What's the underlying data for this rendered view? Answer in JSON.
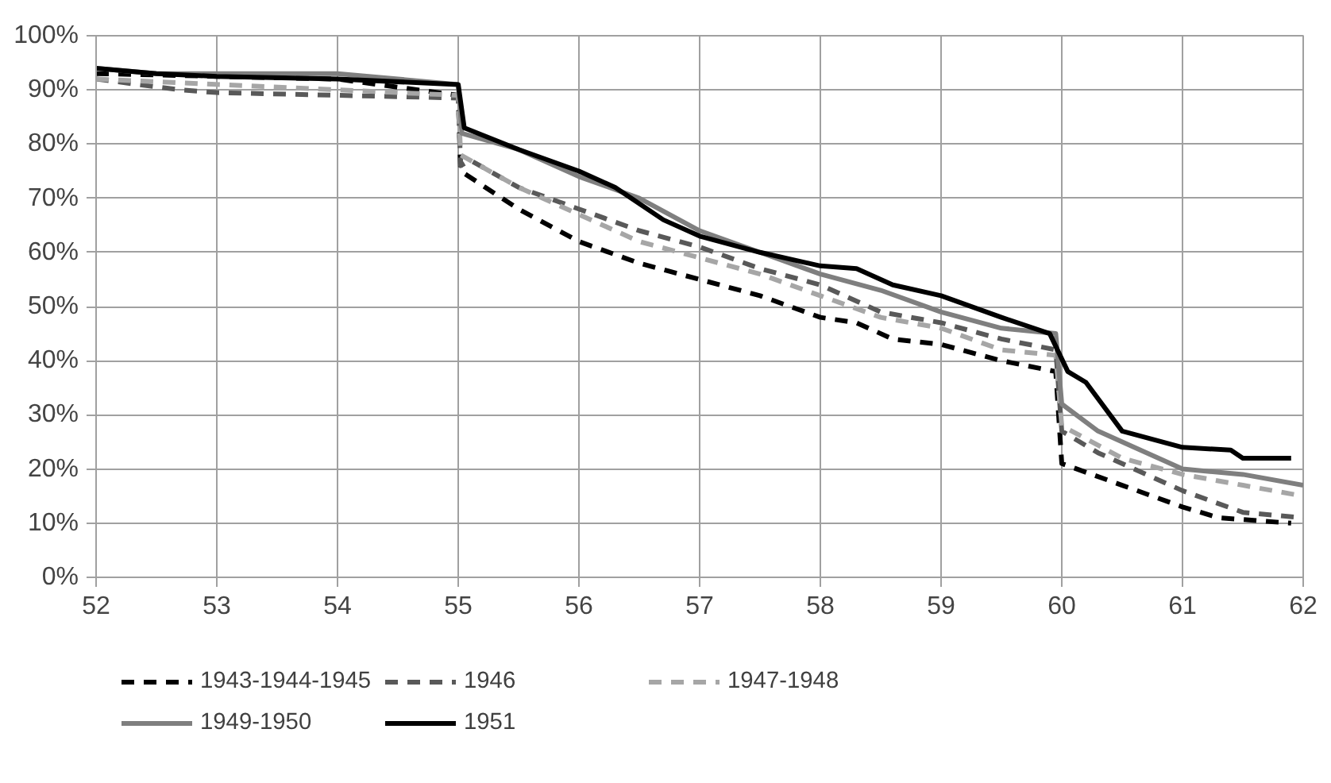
{
  "chart_data": {
    "type": "line",
    "xlim": [
      52,
      62
    ],
    "xticks": [
      52,
      53,
      54,
      55,
      56,
      57,
      58,
      59,
      60,
      61,
      62
    ],
    "ylim": [
      0,
      100
    ],
    "yticks": [
      {
        "value": 0,
        "label": "0%"
      },
      {
        "value": 10,
        "label": "10%"
      },
      {
        "value": 20,
        "label": "20%"
      },
      {
        "value": 30,
        "label": "30%"
      },
      {
        "value": 40,
        "label": "40%"
      },
      {
        "value": 50,
        "label": "50%"
      },
      {
        "value": 60,
        "label": "60%"
      },
      {
        "value": 70,
        "label": "70%"
      },
      {
        "value": 80,
        "label": "80%"
      },
      {
        "value": 90,
        "label": "90%"
      },
      {
        "value": 100,
        "label": "100%"
      }
    ],
    "grid": true,
    "legend": "bottom",
    "marker": "none",
    "series": [
      {
        "name": "1943-1944-1945",
        "color": "#000000",
        "line_style": "dashed",
        "x": [
          52,
          54,
          55,
          55.02,
          55.5,
          56,
          56.5,
          57,
          57.5,
          58,
          58.3,
          58.6,
          59,
          59.5,
          59.95,
          60,
          60.5,
          61,
          61.3,
          61.9
        ],
        "values": [
          93,
          92,
          89,
          75,
          68,
          62,
          58,
          55,
          52,
          48,
          47,
          44,
          43,
          40,
          38,
          21,
          17,
          13,
          11,
          10
        ]
      },
      {
        "name": "1946",
        "color": "#595959",
        "line_style": "dashed",
        "x": [
          52,
          52.7,
          53,
          54,
          55,
          55.02,
          55.1,
          55.5,
          56,
          56.5,
          57,
          57.5,
          58,
          58.5,
          59,
          59.5,
          59.95,
          60,
          60.3,
          60.5,
          61,
          61.5,
          62
        ],
        "values": [
          92,
          90,
          89.5,
          89,
          88.5,
          76,
          77,
          72,
          68,
          64,
          61,
          57,
          54,
          49,
          47,
          44,
          42,
          27,
          23,
          21,
          16,
          12,
          11
        ]
      },
      {
        "name": "1947-1948",
        "color": "#a6a6a6",
        "line_style": "dashed",
        "x": [
          52,
          55,
          55.02,
          55.5,
          56,
          56.5,
          57,
          57.5,
          58,
          58.5,
          59,
          59.5,
          59.95,
          60,
          60.5,
          61,
          61.5,
          62
        ],
        "values": [
          92,
          89,
          78,
          72,
          67,
          62,
          59,
          56,
          52,
          48,
          46,
          42,
          41,
          28,
          22,
          19,
          17,
          15
        ]
      },
      {
        "name": "1949-1950",
        "color": "#7f7f7f",
        "line_style": "solid",
        "x": [
          52,
          52.5,
          53,
          54,
          54.5,
          55,
          55.03,
          55.5,
          56,
          56.5,
          57,
          57.5,
          58,
          58.5,
          59,
          59.5,
          59.95,
          60,
          60.3,
          60.6,
          61,
          61.5,
          62
        ],
        "values": [
          94,
          93,
          93,
          93,
          92,
          91,
          82,
          79,
          74,
          70,
          64,
          60,
          56,
          53,
          49,
          46,
          45,
          32,
          27,
          24,
          20,
          19,
          17
        ]
      },
      {
        "name": "1951",
        "color": "#000000",
        "line_style": "solid",
        "x": [
          52,
          52.5,
          53,
          54,
          55,
          55.05,
          55.5,
          56,
          56.3,
          56.7,
          57,
          57.5,
          58,
          58.3,
          58.6,
          59,
          59.5,
          59.9,
          60.05,
          60.2,
          60.5,
          61,
          61.4,
          61.5,
          61.9
        ],
        "values": [
          94,
          93,
          92.5,
          92,
          91,
          83,
          79,
          75,
          72,
          66,
          63,
          60,
          57.5,
          57,
          54,
          52,
          48,
          45,
          38,
          36,
          27,
          24,
          23.5,
          22,
          22
        ]
      }
    ]
  }
}
